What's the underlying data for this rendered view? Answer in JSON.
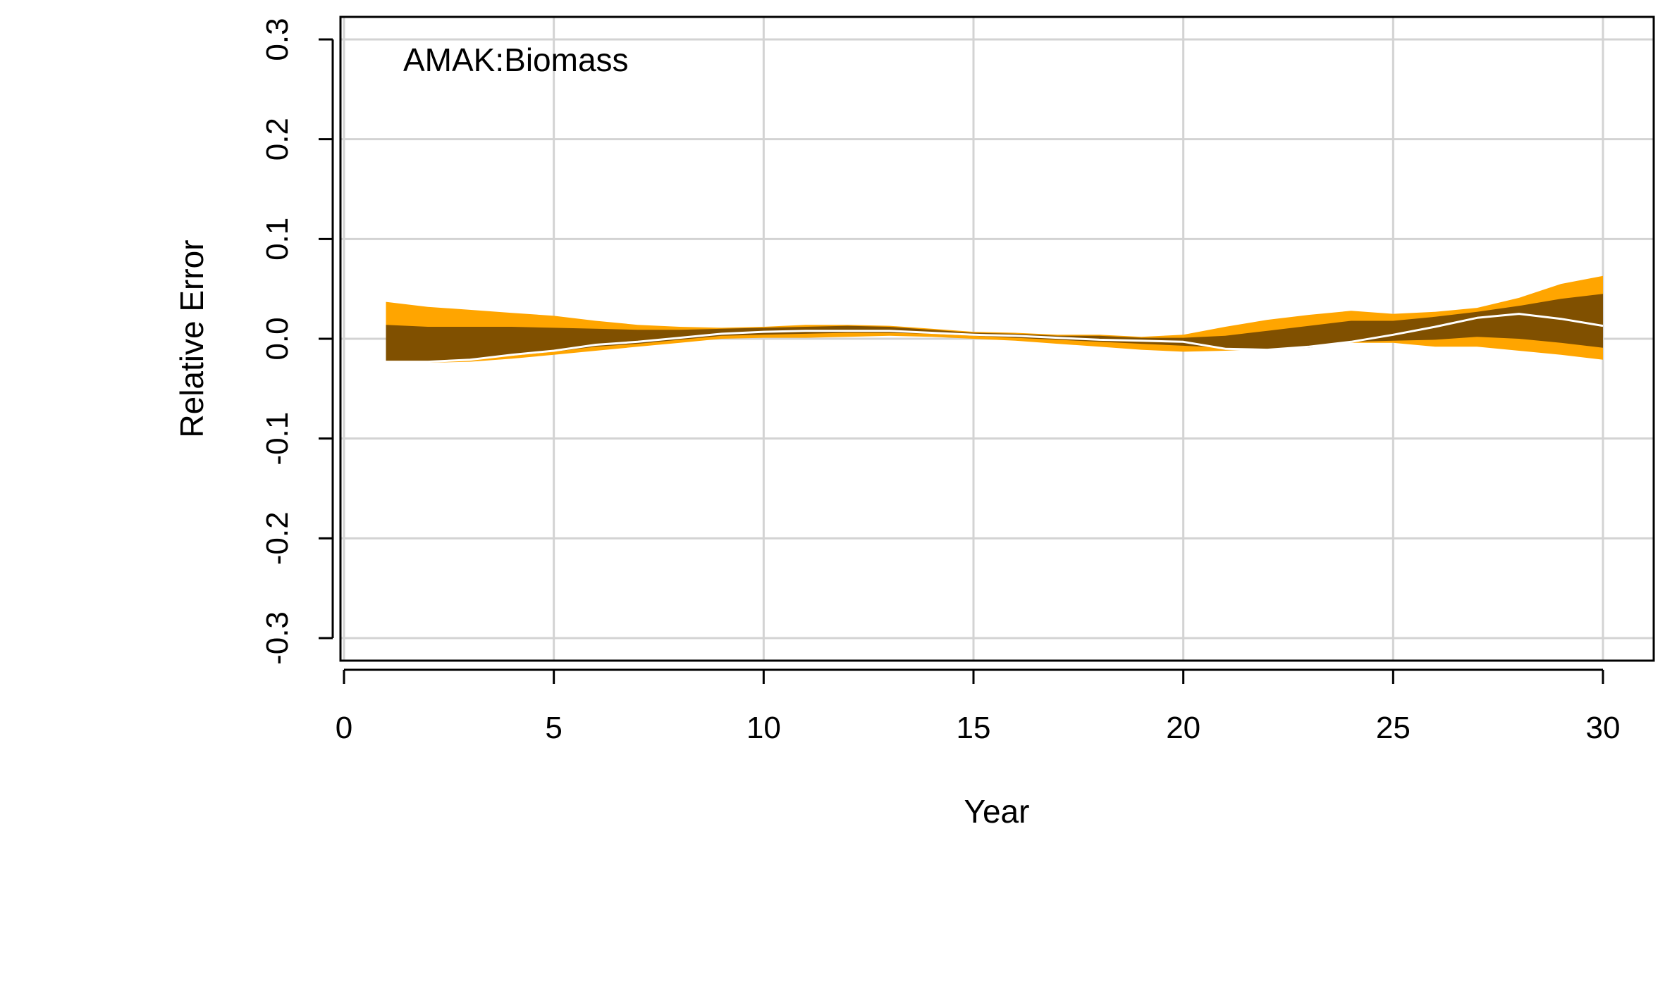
{
  "chart_data": {
    "type": "area",
    "title": "",
    "annotation": "AMAK:Biomass",
    "xlabel": "Year",
    "ylabel": "Relative Error",
    "xlim": [
      0,
      30
    ],
    "ylim": [
      -0.3,
      0.3
    ],
    "x_ticks": [
      0,
      5,
      10,
      15,
      20,
      25,
      30
    ],
    "x_tick_labels": [
      "0",
      "5",
      "10",
      "15",
      "20",
      "25",
      "30"
    ],
    "y_ticks": [
      -0.3,
      -0.2,
      -0.1,
      0.0,
      0.1,
      0.2,
      0.3
    ],
    "y_tick_labels": [
      "-0.3",
      "-0.2",
      "-0.1",
      "0.0",
      "0.1",
      "0.2",
      "0.3"
    ],
    "grid": true,
    "x": [
      1,
      2,
      3,
      4,
      5,
      6,
      7,
      8,
      9,
      10,
      11,
      12,
      13,
      14,
      15,
      16,
      17,
      18,
      19,
      20,
      21,
      22,
      23,
      24,
      25,
      26,
      27,
      28,
      29,
      30
    ],
    "series": [
      {
        "role": "outer-band",
        "color": "#FFA500",
        "upper": [
          0.037,
          0.032,
          0.029,
          0.026,
          0.023,
          0.018,
          0.014,
          0.012,
          0.011,
          0.012,
          0.014,
          0.014,
          0.013,
          0.01,
          0.007,
          0.006,
          0.004,
          0.004,
          0.002,
          0.004,
          0.012,
          0.019,
          0.024,
          0.028,
          0.025,
          0.027,
          0.031,
          0.041,
          0.055,
          0.063
        ],
        "lower": [
          -0.024,
          -0.024,
          -0.023,
          -0.02,
          -0.016,
          -0.012,
          -0.008,
          -0.004,
          0.0,
          0.001,
          0.001,
          0.002,
          0.003,
          0.002,
          0.0,
          -0.002,
          -0.005,
          -0.008,
          -0.011,
          -0.013,
          -0.012,
          -0.01,
          -0.008,
          -0.004,
          -0.004,
          -0.008,
          -0.008,
          -0.012,
          -0.016,
          -0.021
        ]
      },
      {
        "role": "inner-band",
        "color": "#805000",
        "upper": [
          0.014,
          0.012,
          0.012,
          0.012,
          0.011,
          0.01,
          0.009,
          0.009,
          0.01,
          0.011,
          0.012,
          0.013,
          0.012,
          0.009,
          0.006,
          0.005,
          0.003,
          0.003,
          0.001,
          0.001,
          0.003,
          0.008,
          0.013,
          0.018,
          0.018,
          0.022,
          0.027,
          0.033,
          0.04,
          0.045
        ],
        "lower": [
          -0.022,
          -0.022,
          -0.021,
          -0.017,
          -0.013,
          -0.008,
          -0.005,
          -0.001,
          0.003,
          0.004,
          0.005,
          0.006,
          0.006,
          0.005,
          0.003,
          0.001,
          -0.001,
          -0.003,
          -0.005,
          -0.007,
          -0.009,
          -0.011,
          -0.009,
          -0.003,
          -0.002,
          -0.001,
          0.002,
          0.0,
          -0.004,
          -0.009
        ]
      },
      {
        "role": "median-line",
        "color": "#ffffff",
        "values": [
          -0.023,
          -0.023,
          -0.021,
          -0.016,
          -0.012,
          -0.006,
          -0.003,
          0.001,
          0.005,
          0.007,
          0.008,
          0.008,
          0.008,
          0.006,
          0.004,
          0.003,
          0.001,
          -0.001,
          -0.002,
          -0.003,
          -0.01,
          -0.011,
          -0.008,
          -0.003,
          0.004,
          0.012,
          0.021,
          0.025,
          0.02,
          0.013
        ]
      }
    ]
  }
}
